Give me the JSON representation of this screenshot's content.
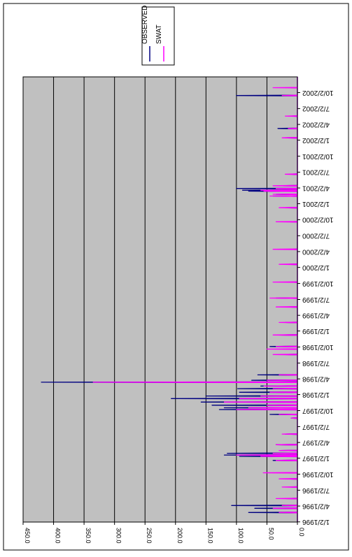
{
  "chart_data": {
    "type": "line",
    "orientation": "rotated-90-clockwise",
    "title": "",
    "xlabel": "",
    "ylabel": "",
    "y_ticks": [
      "0.0",
      "50.0",
      "100.0",
      "150.0",
      "200.0",
      "250.0",
      "300.0",
      "350.0",
      "400.0",
      "450.0"
    ],
    "ylim": [
      0,
      450
    ],
    "x_ticks": [
      "1/2/1996",
      "4/2/1996",
      "7/2/1996",
      "10/2/1996",
      "1/2/1997",
      "4/2/1997",
      "7/2/1997",
      "10/2/1997",
      "1/2/1998",
      "4/2/1998",
      "7/2/1998",
      "10/2/1998",
      "1/2/1999",
      "4/2/1999",
      "7/2/1999",
      "10/2/1999",
      "1/2/2000",
      "4/2/2000",
      "7/2/2000",
      "10/2/2000",
      "1/2/2001",
      "4/2/2001",
      "7/2/2001",
      "10/2/2001",
      "1/2/2002",
      "4/2/2002",
      "7/2/2002",
      "10/2/2002"
    ],
    "xlim": [
      "1996-01-01",
      "2002-12-31"
    ],
    "grid": true,
    "plot_background": "#c0c0c0",
    "legend_position": "top-right",
    "series": [
      {
        "name": "OBSERVED",
        "color": "#000080",
        "points": [
          [
            "1996-02-25",
            80
          ],
          [
            "1996-03-20",
            70
          ],
          [
            "1996-04-05",
            108
          ],
          [
            "1996-05-15",
            20
          ],
          [
            "1996-07-20",
            12
          ],
          [
            "1996-09-05",
            15
          ],
          [
            "1996-12-20",
            40
          ],
          [
            "1997-01-12",
            95
          ],
          [
            "1997-01-20",
            120
          ],
          [
            "1997-01-30",
            115
          ],
          [
            "1997-02-15",
            28
          ],
          [
            "1997-03-20",
            35
          ],
          [
            "1997-05-20",
            20
          ],
          [
            "1997-08-20",
            10
          ],
          [
            "1997-09-10",
            45
          ],
          [
            "1997-10-08",
            128
          ],
          [
            "1997-10-18",
            120
          ],
          [
            "1997-11-02",
            140
          ],
          [
            "1997-11-20",
            158
          ],
          [
            "1997-12-10",
            207
          ],
          [
            "1997-12-25",
            150
          ],
          [
            "1998-01-15",
            95
          ],
          [
            "1998-02-05",
            98
          ],
          [
            "1998-02-20",
            60
          ],
          [
            "1998-03-14",
            420
          ],
          [
            "1998-03-25",
            75
          ],
          [
            "1998-04-25",
            65
          ],
          [
            "1998-08-20",
            20
          ],
          [
            "1998-09-20",
            5
          ],
          [
            "1998-10-05",
            45
          ],
          [
            "1998-12-10",
            30
          ],
          [
            "1999-02-20",
            20
          ],
          [
            "1999-05-20",
            15
          ],
          [
            "1999-07-10",
            35
          ],
          [
            "1999-10-10",
            12
          ],
          [
            "2000-01-20",
            15
          ],
          [
            "2000-04-15",
            8
          ],
          [
            "2000-09-20",
            12
          ],
          [
            "2000-12-10",
            20
          ],
          [
            "2001-02-15",
            40
          ],
          [
            "2001-02-25",
            35
          ],
          [
            "2001-03-15",
            80
          ],
          [
            "2001-03-20",
            90
          ],
          [
            "2001-03-30",
            100
          ],
          [
            "2001-04-15",
            25
          ],
          [
            "2001-06-20",
            10
          ],
          [
            "2002-01-15",
            20
          ],
          [
            "2002-03-10",
            32
          ],
          [
            "2002-05-20",
            10
          ],
          [
            "2002-09-15",
            100
          ],
          [
            "2002-10-30",
            10
          ]
        ]
      },
      {
        "name": "SWAT",
        "color": "#ff00ff",
        "points": [
          [
            "1996-02-25",
            30
          ],
          [
            "1996-03-20",
            40
          ],
          [
            "1996-04-05",
            25
          ],
          [
            "1996-05-15",
            35
          ],
          [
            "1996-07-20",
            25
          ],
          [
            "1996-09-05",
            30
          ],
          [
            "1996-10-10",
            56
          ],
          [
            "1996-12-20",
            35
          ],
          [
            "1997-01-12",
            60
          ],
          [
            "1997-01-20",
            100
          ],
          [
            "1997-01-30",
            40
          ],
          [
            "1997-02-15",
            30
          ],
          [
            "1997-03-20",
            35
          ],
          [
            "1997-05-20",
            25
          ],
          [
            "1997-08-20",
            10
          ],
          [
            "1997-09-10",
            30
          ],
          [
            "1997-10-08",
            100
          ],
          [
            "1997-10-18",
            80
          ],
          [
            "1997-11-02",
            50
          ],
          [
            "1997-11-20",
            120
          ],
          [
            "1997-12-10",
            95
          ],
          [
            "1997-12-25",
            60
          ],
          [
            "1998-01-15",
            45
          ],
          [
            "1998-02-05",
            40
          ],
          [
            "1998-02-20",
            55
          ],
          [
            "1998-03-14",
            335
          ],
          [
            "1998-03-25",
            50
          ],
          [
            "1998-04-25",
            30
          ],
          [
            "1998-08-20",
            40
          ],
          [
            "1998-09-20",
            50
          ],
          [
            "1998-10-05",
            35
          ],
          [
            "1998-12-10",
            40
          ],
          [
            "1999-02-20",
            30
          ],
          [
            "1999-05-20",
            35
          ],
          [
            "1999-07-10",
            45
          ],
          [
            "1999-10-10",
            40
          ],
          [
            "2000-01-20",
            30
          ],
          [
            "2000-04-15",
            40
          ],
          [
            "2000-09-20",
            35
          ],
          [
            "2000-12-10",
            30
          ],
          [
            "2001-02-15",
            45
          ],
          [
            "2001-02-25",
            40
          ],
          [
            "2001-03-15",
            55
          ],
          [
            "2001-03-20",
            60
          ],
          [
            "2001-03-30",
            35
          ],
          [
            "2001-04-15",
            40
          ],
          [
            "2001-06-20",
            20
          ],
          [
            "2002-01-15",
            25
          ],
          [
            "2002-03-10",
            15
          ],
          [
            "2002-05-20",
            20
          ],
          [
            "2002-09-15",
            25
          ],
          [
            "2002-10-30",
            40
          ]
        ]
      }
    ]
  }
}
